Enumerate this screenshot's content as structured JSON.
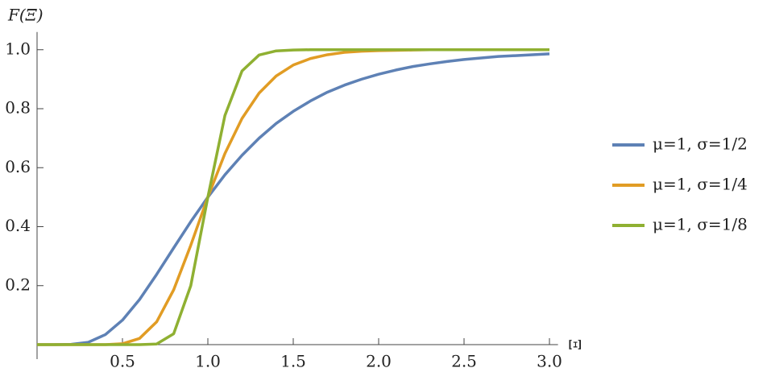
{
  "chart_data": {
    "type": "line",
    "y_axis_label": "F(Ξ)",
    "x_axis_label": "Ξ",
    "x": [
      0,
      0.1,
      0.2,
      0.3,
      0.4,
      0.5,
      0.6,
      0.7,
      0.8,
      0.9,
      1.0,
      1.1,
      1.2,
      1.3,
      1.4,
      1.5,
      1.6,
      1.7,
      1.8,
      1.9,
      2.0,
      2.1,
      2.2,
      2.3,
      2.4,
      2.5,
      2.6,
      2.7,
      2.8,
      2.9,
      3.0
    ],
    "series": [
      {
        "name": "μ=1, σ=1/2",
        "color": "#5e81b5",
        "values": [
          0,
          0,
          0.001,
          0.008,
          0.034,
          0.083,
          0.153,
          0.238,
          0.328,
          0.417,
          0.5,
          0.576,
          0.642,
          0.7,
          0.75,
          0.791,
          0.826,
          0.856,
          0.88,
          0.9,
          0.917,
          0.931,
          0.943,
          0.952,
          0.96,
          0.967,
          0.972,
          0.977,
          0.98,
          0.983,
          0.986
        ]
      },
      {
        "name": "μ=1, σ=1/4",
        "color": "#e19c24",
        "values": [
          0,
          0,
          0,
          0,
          0,
          0.003,
          0.021,
          0.077,
          0.186,
          0.337,
          0.5,
          0.648,
          0.767,
          0.853,
          0.911,
          0.948,
          0.97,
          0.983,
          0.991,
          0.995,
          0.997,
          0.998,
          0.999,
          1,
          1,
          1,
          1,
          1,
          1,
          1,
          1
        ]
      },
      {
        "name": "μ=1, σ=1/8",
        "color": "#8fb032",
        "values": [
          0,
          0,
          0,
          0,
          0,
          0,
          0,
          0.002,
          0.037,
          0.2,
          0.5,
          0.777,
          0.928,
          0.982,
          0.996,
          0.999,
          1,
          1,
          1,
          1,
          1,
          1,
          1,
          1,
          1,
          1,
          1,
          1,
          1,
          1,
          1
        ]
      }
    ],
    "xlim": [
      0,
      3.05
    ],
    "ylim": [
      0,
      1.06
    ],
    "xticks": [
      0.5,
      {
        "value": 1,
        "label": "1.0"
      },
      1.5,
      {
        "value": 2,
        "label": "2.0"
      },
      2.5,
      {
        "value": 3,
        "label": "3.0"
      }
    ],
    "yticks": [
      0.2,
      0.4,
      0.6,
      0.8,
      {
        "value": 1,
        "label": "1.0"
      }
    ],
    "legend": "right",
    "grid": false
  }
}
